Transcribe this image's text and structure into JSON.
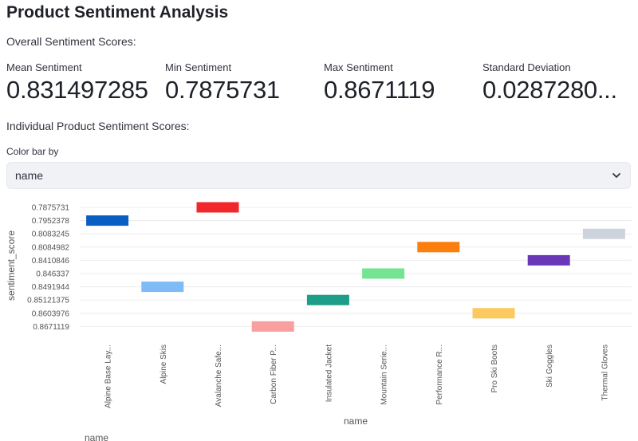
{
  "page": {
    "title": "Product Sentiment Analysis",
    "overall_heading": "Overall Sentiment Scores:",
    "individual_heading": "Individual Product Sentiment Scores:"
  },
  "metrics": [
    {
      "label": "Mean Sentiment",
      "value": "0.831497285"
    },
    {
      "label": "Min Sentiment",
      "value": "0.7875731"
    },
    {
      "label": "Max Sentiment",
      "value": "0.8671119"
    },
    {
      "label": "Standard Deviation",
      "value": "0.0287280..."
    }
  ],
  "select": {
    "label": "Color bar by",
    "value": "name"
  },
  "legend": {
    "title": "name"
  },
  "chart_data": {
    "type": "bar",
    "xlabel": "name",
    "ylabel": "sentiment_score",
    "y_categories": [
      "0.7875731",
      "0.7952378",
      "0.8083245",
      "0.8084982",
      "0.8410846",
      "0.846337",
      "0.8491944",
      "0.85121375",
      "0.8603976",
      "0.8671119"
    ],
    "x_tick_labels": [
      "Alpine Base Lay...",
      "Alpine Skis",
      "Avalanche Safe...",
      "Carbon Fiber P...",
      "Insulated Jacket",
      "Mountain Serie...",
      "Performance R...",
      "Pro Ski Boots",
      "Ski Goggles",
      "Thermal Gloves"
    ],
    "bars": [
      {
        "category": "Alpine Base Lay...",
        "value": "0.7952378",
        "color": "#0a5ec1"
      },
      {
        "category": "Alpine Skis",
        "value": "0.8491944",
        "color": "#7fbbf5"
      },
      {
        "category": "Avalanche Safe...",
        "value": "0.7875731",
        "color": "#f0272b"
      },
      {
        "category": "Carbon Fiber P...",
        "value": "0.8671119",
        "color": "#f8a0a0"
      },
      {
        "category": "Insulated Jacket",
        "value": "0.85121375",
        "color": "#1e9e88"
      },
      {
        "category": "Mountain Serie...",
        "value": "0.846337",
        "color": "#74e392"
      },
      {
        "category": "Performance R...",
        "value": "0.8084982",
        "color": "#fb7e0f"
      },
      {
        "category": "Pro Ski Boots",
        "value": "0.8603976",
        "color": "#fbc95e"
      },
      {
        "category": "Ski Goggles",
        "value": "0.8410846",
        "color": "#6a37b8"
      },
      {
        "category": "Thermal Gloves",
        "value": "0.8083245",
        "color": "#ccd3dd"
      }
    ]
  }
}
